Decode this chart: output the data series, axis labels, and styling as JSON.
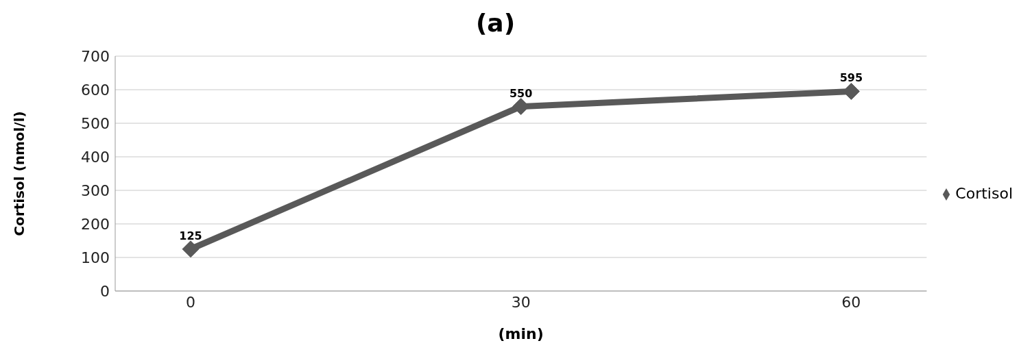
{
  "chart_data": {
    "type": "line",
    "title": "(a)",
    "xlabel": "(min)",
    "ylabel": "Cortisol (nmol/l)",
    "categories": [
      "0",
      "30",
      "60"
    ],
    "series": [
      {
        "name": "Cortisol",
        "color": "#595959",
        "values": [
          125,
          550,
          595
        ]
      }
    ],
    "ylim": [
      0,
      700
    ],
    "yticks": [
      0,
      100,
      200,
      300,
      400,
      500,
      600,
      700
    ],
    "grid": "y",
    "legend": "right",
    "marker": "diamond",
    "line_style": "solid",
    "data_labels": true
  }
}
